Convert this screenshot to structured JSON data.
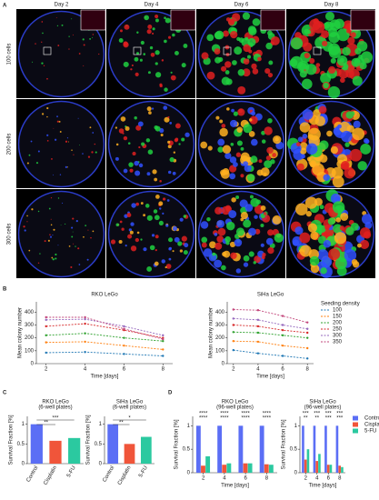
{
  "panel_labels": [
    "A",
    "B",
    "C",
    "D"
  ],
  "panel_a": {
    "columns": [
      "Day 2",
      "Day 4",
      "Day 6",
      "Day 8"
    ],
    "rows": [
      "100 cells",
      "200 cells",
      "300 cells"
    ]
  },
  "chart_data": [
    {
      "type": "line",
      "title": "RKO LeGo",
      "x_label": "Time [days]",
      "y_label": "Mean colony number",
      "x": [
        2,
        4,
        6,
        8
      ],
      "xlim": [
        1.5,
        8.5
      ],
      "xticks": [
        2,
        4,
        6,
        8
      ],
      "ylim": [
        0,
        480
      ],
      "yticks": [
        0,
        100,
        200,
        300,
        400
      ],
      "series": [
        {
          "name": "100",
          "color": "#1f77b4",
          "values": [
            85,
            90,
            75,
            60
          ]
        },
        {
          "name": "150",
          "color": "#ff7f0e",
          "values": [
            165,
            170,
            140,
            110
          ]
        },
        {
          "name": "200",
          "color": "#2ca02c",
          "values": [
            220,
            235,
            200,
            175
          ]
        },
        {
          "name": "250",
          "color": "#d62728",
          "values": [
            290,
            310,
            260,
            200
          ]
        },
        {
          "name": "300",
          "color": "#9467bd",
          "values": [
            340,
            345,
            290,
            220
          ]
        },
        {
          "name": "350",
          "color": "#c2457a",
          "values": [
            360,
            360,
            270,
            190
          ]
        }
      ]
    },
    {
      "type": "line",
      "title": "SiHa LeGo",
      "x_label": "Time [days]",
      "y_label": "Mean colony number",
      "legend_title": "Seeding density",
      "x": [
        2,
        4,
        6,
        8
      ],
      "xlim": [
        1.5,
        8.5
      ],
      "xticks": [
        2,
        4,
        6,
        8
      ],
      "ylim": [
        0,
        480
      ],
      "yticks": [
        0,
        100,
        200,
        300,
        400
      ],
      "legend": "right",
      "series": [
        {
          "name": "100",
          "color": "#1f77b4",
          "values": [
            105,
            80,
            60,
            40
          ]
        },
        {
          "name": "150",
          "color": "#ff7f0e",
          "values": [
            175,
            170,
            140,
            120
          ]
        },
        {
          "name": "200",
          "color": "#2ca02c",
          "values": [
            245,
            240,
            220,
            200
          ]
        },
        {
          "name": "250",
          "color": "#d62728",
          "values": [
            300,
            290,
            260,
            240
          ]
        },
        {
          "name": "300",
          "color": "#9467bd",
          "values": [
            350,
            340,
            300,
            270
          ]
        },
        {
          "name": "350",
          "color": "#c2457a",
          "values": [
            420,
            415,
            370,
            320
          ]
        }
      ]
    },
    {
      "type": "bar",
      "title": "RKO LeGo",
      "subtitle": "(6-well plates)",
      "y_label": "Survival Fraction [%]",
      "categories": [
        "Control",
        "Cisplatin",
        "5-FU"
      ],
      "values": [
        1,
        0.58,
        0.65
      ],
      "colors": [
        "#5b6ef5",
        "#f0553a",
        "#2bc9a0"
      ],
      "ylim": [
        0,
        1.2
      ],
      "yticks": [
        0,
        0.5,
        1
      ],
      "annotations": [
        "***",
        "**"
      ]
    },
    {
      "type": "bar",
      "title": "SiHa LeGo",
      "subtitle": "(6-well plates)",
      "y_label": "Survival Fraction [%]",
      "categories": [
        "Control",
        "Cisplatin",
        "5-FU"
      ],
      "values": [
        1,
        0.5,
        0.68
      ],
      "colors": [
        "#5b6ef5",
        "#f0553a",
        "#2bc9a0"
      ],
      "ylim": [
        0,
        1.2
      ],
      "yticks": [
        0,
        0.5,
        1
      ],
      "annotations": [
        "*",
        "**"
      ]
    },
    {
      "type": "grouped",
      "title": "RKO LeGo",
      "subtitle": "(96-well plates)",
      "y_label": "Survival Fraction [%]",
      "x_label": "Time [days]",
      "x": [
        2,
        4,
        6,
        8
      ],
      "xlim": [
        1,
        9
      ],
      "xticks": [
        2,
        4,
        6,
        8
      ],
      "ylim": [
        0,
        1.2
      ],
      "yticks": [
        0,
        0.5,
        1
      ],
      "series": [
        {
          "name": "Control",
          "color": "#5b6ef5",
          "values": [
            1,
            1,
            1,
            1
          ]
        },
        {
          "name": "Cisplatin",
          "color": "#f0553a",
          "values": [
            0.15,
            0.17,
            0.2,
            0.18
          ]
        },
        {
          "name": "5-FU",
          "color": "#2bc9a0",
          "values": [
            0.35,
            0.2,
            0.2,
            0.17
          ]
        }
      ],
      "annotations": [
        [
          "****",
          "****"
        ],
        [
          "****",
          "****"
        ],
        [
          "****",
          "****"
        ],
        [
          "****",
          "****"
        ]
      ]
    },
    {
      "type": "grouped",
      "title": "SiHa LeGo",
      "subtitle": "(96-well plates)",
      "y_label": "Survival Fraction [%]",
      "x_label": "Time [days]",
      "x": [
        2,
        4,
        6,
        8
      ],
      "xlim": [
        1,
        9
      ],
      "xticks": [
        2,
        4,
        6,
        8
      ],
      "ylim": [
        0,
        1.2
      ],
      "yticks": [
        0,
        0.5,
        1
      ],
      "legend": "right",
      "series": [
        {
          "name": "Control",
          "color": "#5b6ef5",
          "values": [
            1,
            1,
            1,
            1
          ]
        },
        {
          "name": "Cisplatin",
          "color": "#f0553a",
          "values": [
            0.28,
            0.25,
            0.17,
            0.15
          ]
        },
        {
          "name": "5-FU",
          "color": "#2bc9a0",
          "values": [
            0.5,
            0.4,
            0.17,
            0.12
          ]
        }
      ],
      "annotations": [
        [
          "***",
          "**"
        ],
        [
          "***",
          "**"
        ],
        [
          "***",
          "***"
        ],
        [
          "***",
          "***"
        ]
      ]
    }
  ]
}
